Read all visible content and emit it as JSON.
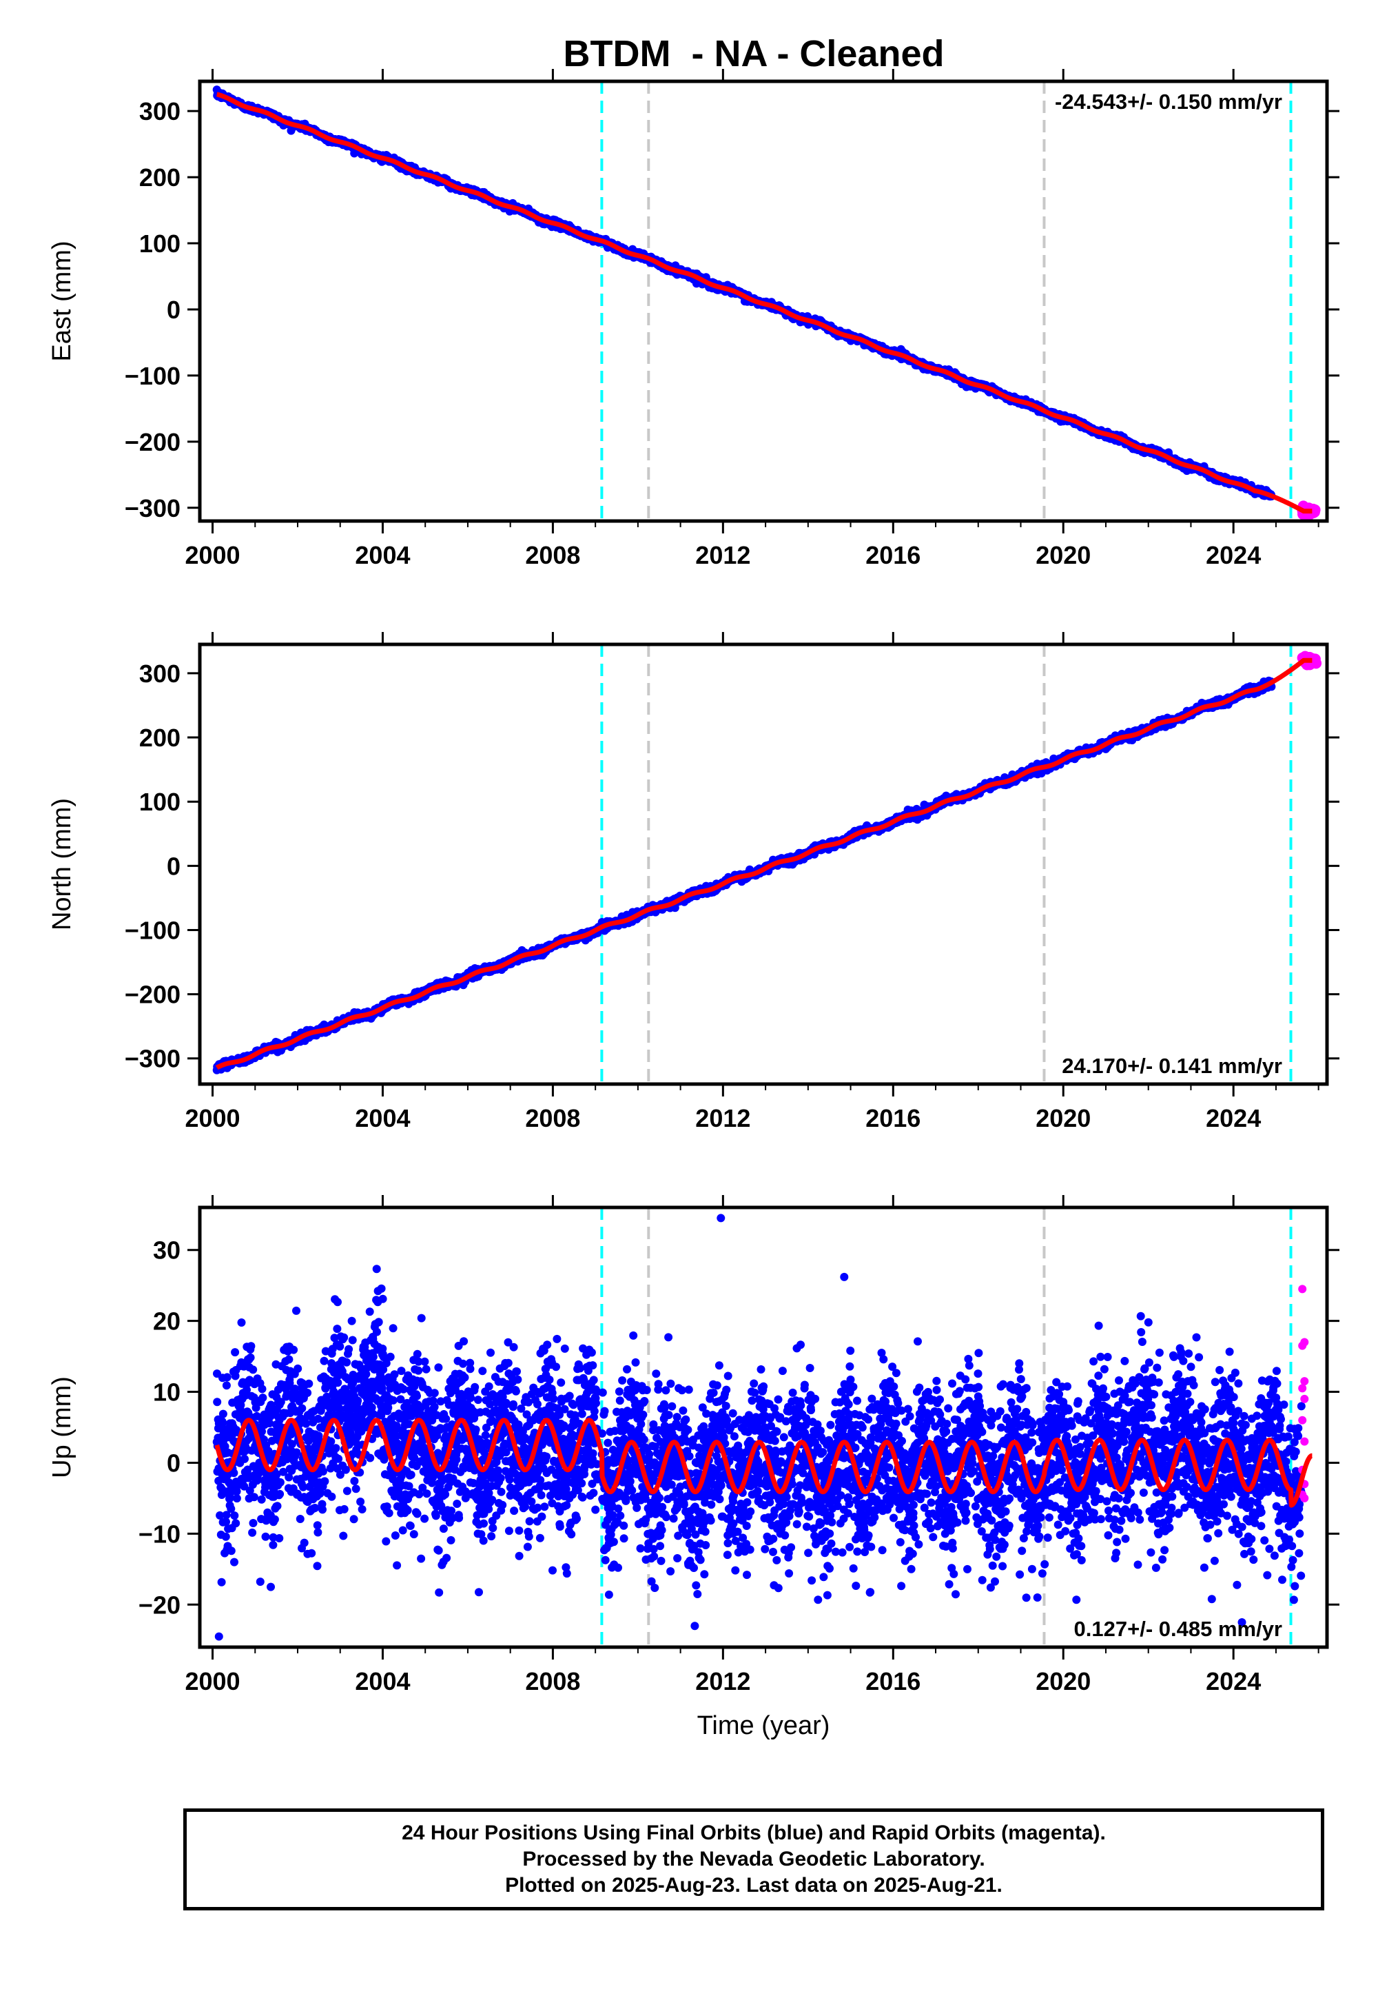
{
  "title": "BTDM  - NA - Cleaned",
  "footer": {
    "line1": "24 Hour Positions Using Final Orbits (blue) and Rapid Orbits (magenta).",
    "line2": "Processed by the Nevada Geodetic Laboratory.",
    "line3": "Plotted on 2025-Aug-23. Last data on 2025-Aug-21."
  },
  "colors": {
    "final_orbits": "#0000ff",
    "rapid_orbits": "#ff00ff",
    "model_fit": "#ff0000",
    "antenna_change_line": "#00ffff",
    "equipment_change_line": "#c8c8c8"
  },
  "chart_data": [
    {
      "type": "scatter",
      "panel": "east",
      "ylabel": "East (mm)",
      "xlabel": "",
      "xlim": [
        1999.7,
        2026.2
      ],
      "ylim": [
        -320,
        345
      ],
      "xticks": [
        2000,
        2004,
        2008,
        2012,
        2016,
        2020,
        2024
      ],
      "yticks": [
        -300,
        -200,
        -100,
        0,
        100,
        200,
        300
      ],
      "rate_label": "-24.543+/- 0.150 mm/yr",
      "rate_position": "top-right",
      "grid": false,
      "data_start": 2000.1,
      "final_end": 2024.9,
      "rapid_range": [
        2025.35,
        2025.65
      ],
      "fit": {
        "intercept_at_2000": 327,
        "rate_mm_yr": -24.543,
        "end_value": -305,
        "annual_amplitude": 1.5,
        "noise": 2.5
      },
      "cyan_lines": [
        2009.15,
        2025.35
      ],
      "gray_lines": [
        2010.25,
        2019.55
      ]
    },
    {
      "type": "scatter",
      "panel": "north",
      "ylabel": "North (mm)",
      "xlabel": "",
      "xlim": [
        1999.7,
        2026.2
      ],
      "ylim": [
        -340,
        345
      ],
      "xticks": [
        2000,
        2004,
        2008,
        2012,
        2016,
        2020,
        2024
      ],
      "yticks": [
        -300,
        -200,
        -100,
        0,
        100,
        200,
        300
      ],
      "rate_label": "24.170+/- 0.141 mm/yr",
      "rate_position": "bottom-right",
      "grid": false,
      "data_start": 2000.1,
      "final_end": 2024.9,
      "rapid_range": [
        2025.35,
        2025.65
      ],
      "fit": {
        "intercept_at_2000": -318,
        "rate_mm_yr": 24.17,
        "end_value": 320,
        "annual_amplitude": 2.0,
        "noise": 3.0
      },
      "cyan_lines": [
        2009.15,
        2025.35
      ],
      "gray_lines": [
        2010.25,
        2019.55
      ]
    },
    {
      "type": "scatter",
      "panel": "up",
      "ylabel": "Up (mm)",
      "xlabel": "Time (year)",
      "xlim": [
        1999.7,
        2026.2
      ],
      "ylim": [
        -26,
        36
      ],
      "xticks": [
        2000,
        2004,
        2008,
        2012,
        2016,
        2020,
        2024
      ],
      "yticks": [
        -20,
        -10,
        0,
        10,
        20,
        30
      ],
      "rate_label": "0.127+/- 0.485 mm/yr",
      "rate_position": "bottom-right",
      "grid": false,
      "data_start": 2000.1,
      "final_end": 2025.6,
      "rapid_range": [
        2025.55,
        2025.65
      ],
      "fit": {
        "annual_amplitude": 3.5,
        "seasonal_peak_month_fraction": 0.85,
        "offset_before_2009": 2.5,
        "offset_after_2009": -0.6,
        "offset_after_2019": -0.3,
        "noise": 5.5
      },
      "highlights": [
        {
          "x": 2003.5,
          "y": 12,
          "note_range": [
            2002.5,
            2004.5
          ]
        }
      ],
      "outliers": [
        [
          2000.15,
          -24.5
        ],
        [
          2011.95,
          34.5
        ],
        [
          2014.85,
          26.2
        ],
        [
          2024.2,
          -22.5
        ]
      ],
      "rapid_points": [
        24.5,
        17,
        16.5,
        11.5,
        10.5,
        9,
        6,
        3,
        -1,
        -3,
        -4.5,
        -5
      ],
      "cyan_lines": [
        2009.15,
        2025.35
      ],
      "gray_lines": [
        2010.25,
        2019.55
      ]
    }
  ]
}
